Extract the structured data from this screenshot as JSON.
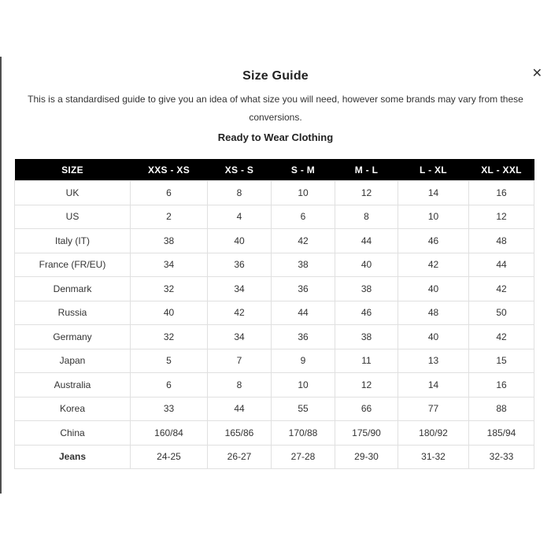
{
  "modal": {
    "title": "Size Guide",
    "close_glyph": "✕",
    "description": "This is a standardised guide to give you an idea of what size you will need, however some brands may vary from these conversions.",
    "section_heading": "Ready to Wear Clothing"
  },
  "table": {
    "columns": [
      "SIZE",
      "XXS - XS",
      "XS - S",
      "S - M",
      "M - L",
      "L - XL",
      "XL - XXL"
    ],
    "rows": [
      {
        "label": "UK",
        "bold": false,
        "values": [
          "6",
          "8",
          "10",
          "12",
          "14",
          "16"
        ]
      },
      {
        "label": "US",
        "bold": false,
        "values": [
          "2",
          "4",
          "6",
          "8",
          "10",
          "12"
        ]
      },
      {
        "label": "Italy (IT)",
        "bold": false,
        "values": [
          "38",
          "40",
          "42",
          "44",
          "46",
          "48"
        ]
      },
      {
        "label": "France (FR/EU)",
        "bold": false,
        "values": [
          "34",
          "36",
          "38",
          "40",
          "42",
          "44"
        ]
      },
      {
        "label": "Denmark",
        "bold": false,
        "values": [
          "32",
          "34",
          "36",
          "38",
          "40",
          "42"
        ]
      },
      {
        "label": "Russia",
        "bold": false,
        "values": [
          "40",
          "42",
          "44",
          "46",
          "48",
          "50"
        ]
      },
      {
        "label": "Germany",
        "bold": false,
        "values": [
          "32",
          "34",
          "36",
          "38",
          "40",
          "42"
        ]
      },
      {
        "label": "Japan",
        "bold": false,
        "values": [
          "5",
          "7",
          "9",
          "11",
          "13",
          "15"
        ]
      },
      {
        "label": "Australia",
        "bold": false,
        "values": [
          "6",
          "8",
          "10",
          "12",
          "14",
          "16"
        ]
      },
      {
        "label": "Korea",
        "bold": false,
        "values": [
          "33",
          "44",
          "55",
          "66",
          "77",
          "88"
        ]
      },
      {
        "label": "China",
        "bold": false,
        "values": [
          "160/84",
          "165/86",
          "170/88",
          "175/90",
          "180/92",
          "185/94"
        ]
      },
      {
        "label": "Jeans",
        "bold": true,
        "values": [
          "24-25",
          "26-27",
          "27-28",
          "29-30",
          "31-32",
          "32-33"
        ]
      }
    ]
  },
  "colors": {
    "header_bg": "#000000",
    "header_text": "#ffffff",
    "border": "#e0e0e0",
    "text": "#333333",
    "left_edge": "#4f4f4f"
  }
}
